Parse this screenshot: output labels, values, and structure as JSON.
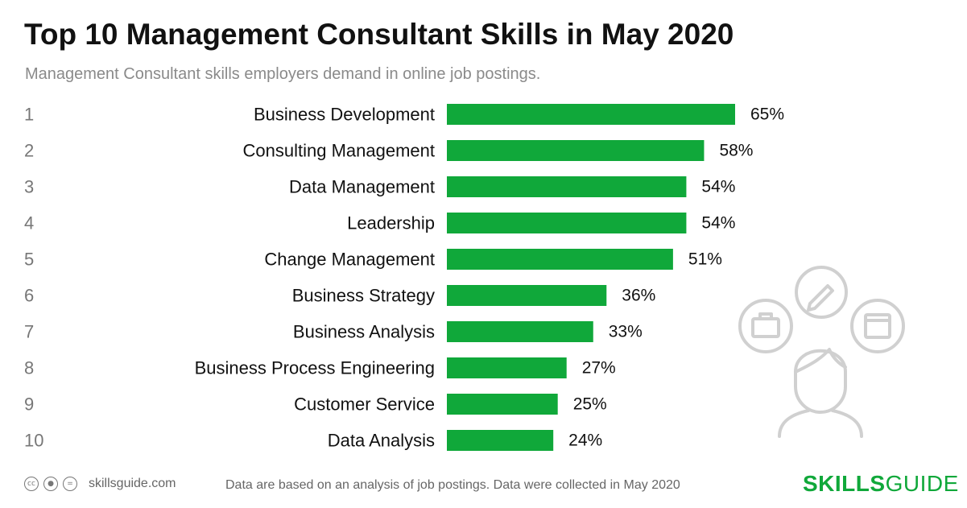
{
  "header": {
    "title": "Top 10 Management Consultant Skills in May 2020",
    "subtitle": "Management Consultant skills employers demand in online job postings."
  },
  "chart_data": {
    "type": "bar",
    "orientation": "horizontal",
    "ranks": [
      "1",
      "2",
      "3",
      "4",
      "5",
      "6",
      "7",
      "8",
      "9",
      "10"
    ],
    "categories": [
      "Business Development",
      "Consulting Management",
      "Data Management",
      "Leadership",
      "Change Management",
      "Business Strategy",
      "Business Analysis",
      "Business Process Engineering",
      "Customer Service",
      "Data Analysis"
    ],
    "values": [
      65,
      58,
      54,
      54,
      51,
      36,
      33,
      27,
      25,
      24
    ],
    "value_labels": [
      "65%",
      "58%",
      "54%",
      "54%",
      "51%",
      "36%",
      "33%",
      "27%",
      "25%",
      "24%"
    ],
    "bar_color": "#10a83a"
  },
  "footer": {
    "site": "skillsguide.com",
    "note": "Data are based on an analysis of job postings. Data were collected in May 2020",
    "brand_bold": "SKILLS",
    "brand_light": "GUIDE",
    "license_icons": [
      "cc-icon",
      "by-icon",
      "nd-icon"
    ]
  }
}
